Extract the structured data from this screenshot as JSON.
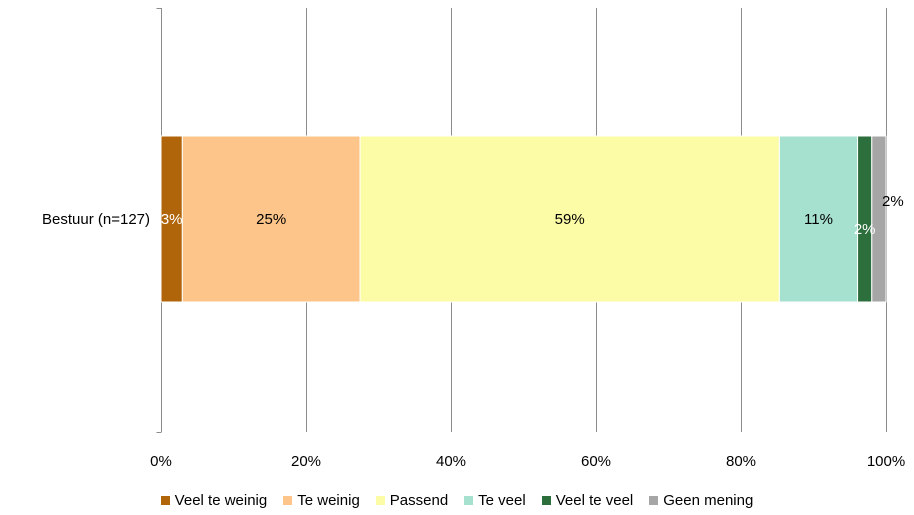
{
  "chart_data": {
    "type": "bar",
    "orientation": "horizontal",
    "stacked": "percent",
    "categories": [
      "Bestuur (n=127)"
    ],
    "series": [
      {
        "name": "Veel te weinig",
        "values": [
          3
        ],
        "label": "3%",
        "color": "#b0650a",
        "label_color": "#ffffff"
      },
      {
        "name": "Te weinig",
        "values": [
          25
        ],
        "label": "25%",
        "color": "#fdc58a",
        "label_color": "#000000"
      },
      {
        "name": "Passend",
        "values": [
          59
        ],
        "label": "59%",
        "color": "#fdfca6",
        "label_color": "#000000"
      },
      {
        "name": "Te veel",
        "values": [
          11
        ],
        "label": "11%",
        "color": "#a6e0cf",
        "label_color": "#000000"
      },
      {
        "name": "Veel te veel",
        "values": [
          2
        ],
        "label": "2%",
        "color": "#2c6e3c",
        "label_color": "#ffffff"
      },
      {
        "name": "Geen mening",
        "values": [
          2
        ],
        "label": "2%",
        "color": "#a6a6a6",
        "label_color": "#000000"
      }
    ],
    "xlim": [
      0,
      100
    ],
    "xticks": [
      0,
      20,
      40,
      60,
      80,
      100
    ],
    "xtick_labels": [
      "0%",
      "20%",
      "40%",
      "60%",
      "80%",
      "100%"
    ],
    "grid": true,
    "legend": "bottom"
  }
}
